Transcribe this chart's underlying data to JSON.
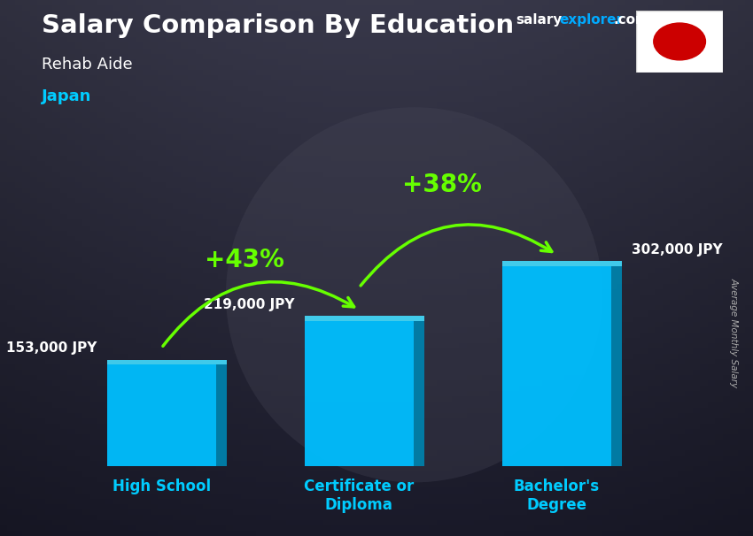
{
  "title_main": "Salary Comparison By Education",
  "subtitle1": "Rehab Aide",
  "subtitle2": "Japan",
  "ylabel": "Average Monthly Salary",
  "categories": [
    "High School",
    "Certificate or\nDiploma",
    "Bachelor's\nDegree"
  ],
  "values": [
    153000,
    219000,
    302000
  ],
  "value_labels": [
    "153,000 JPY",
    "219,000 JPY",
    "302,000 JPY"
  ],
  "bar_color_face": "#00bfff",
  "bar_color_side": "#0080aa",
  "bar_color_top": "#44ddff",
  "bar_width": 0.55,
  "pct_labels": [
    "+43%",
    "+38%"
  ],
  "pct_color": "#66ff00",
  "arrow_color": "#66ff00",
  "ylim": [
    0,
    420000
  ],
  "title_color": "#ffffff",
  "subtitle1_color": "#ffffff",
  "subtitle2_color": "#00ccff",
  "value_label_color": "#ffffff",
  "xlabel_color": "#00ccff",
  "brand_salary_color": "#ffffff",
  "brand_explorer_color": "#00aaff",
  "brand_com_color": "#ffffff",
  "flag_circle_color": "#cc0000",
  "ylabel_color": "#aaaaaa",
  "bg_gradient_top": "#3a3a4a",
  "bg_gradient_bottom": "#1a1a28"
}
